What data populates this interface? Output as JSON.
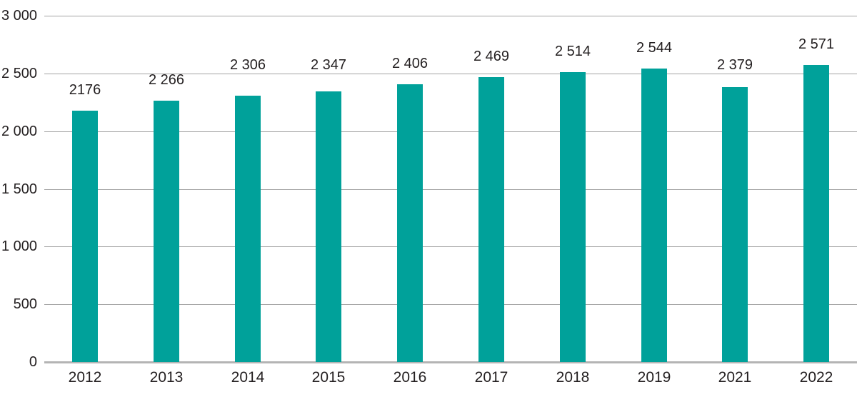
{
  "chart_data": {
    "type": "bar",
    "title": "",
    "xlabel": "",
    "ylabel": "",
    "categories": [
      "2012",
      "2013",
      "2014",
      "2015",
      "2016",
      "2017",
      "2018",
      "2019",
      "2021",
      "2022"
    ],
    "values": [
      2176,
      2266,
      2306,
      2347,
      2406,
      2469,
      2514,
      2544,
      2379,
      2571
    ],
    "value_labels": [
      "2176",
      "2 266",
      "2 306",
      "2 347",
      "2 406",
      "2 469",
      "2 514",
      "2 544",
      "2 379",
      "2 571"
    ],
    "ylim": [
      0,
      3000
    ],
    "y_ticks": [
      {
        "value": 0,
        "label": "0"
      },
      {
        "value": 500,
        "label": "500"
      },
      {
        "value": 1000,
        "label": "1 000"
      },
      {
        "value": 1500,
        "label": "1 500"
      },
      {
        "value": 2000,
        "label": "2 000"
      },
      {
        "value": 2500,
        "label": "2 500"
      },
      {
        "value": 3000,
        "label": "3 000"
      }
    ],
    "grid": true,
    "legend_position": "none",
    "colors": {
      "bar": "#00A19A",
      "gridline": "#A4A4A4",
      "axis_line": "#B4B4B4",
      "text": "#231F20",
      "background": "#FFFFFF"
    }
  }
}
